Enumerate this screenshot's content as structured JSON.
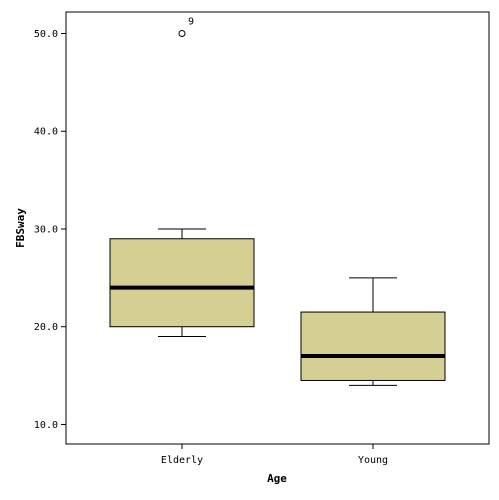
{
  "chart_data": {
    "type": "boxplot",
    "xlabel": "Age",
    "ylabel": "FBSway",
    "ylim": [
      8,
      52.2
    ],
    "yticks": [
      10.0,
      20.0,
      30.0,
      40.0,
      50.0
    ],
    "ytick_labels": [
      "10.0",
      "20.0",
      "30.0",
      "40.0",
      "50.0"
    ],
    "categories": [
      "Elderly",
      "Young"
    ],
    "box_color": "#d6cf93",
    "median_color": "#000000",
    "grid": false,
    "boxes": [
      {
        "category": "Elderly",
        "whisker_low": 19,
        "q1": 20,
        "median": 24,
        "q3": 29,
        "whisker_high": 30,
        "outliers": [
          {
            "value": 50,
            "label": "9"
          }
        ]
      },
      {
        "category": "Young",
        "whisker_low": 14,
        "q1": 14.5,
        "median": 17,
        "q3": 21.5,
        "whisker_high": 25,
        "outliers": []
      }
    ]
  }
}
